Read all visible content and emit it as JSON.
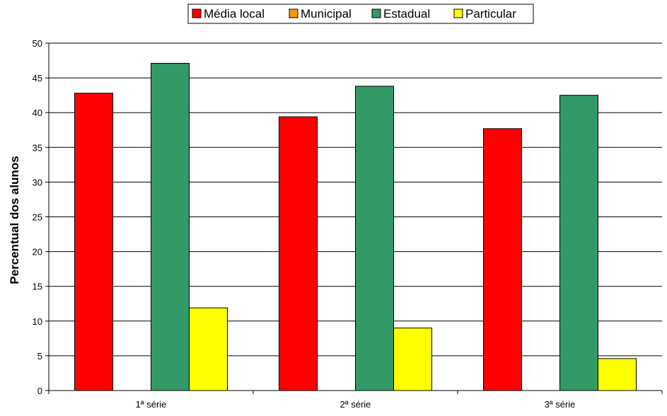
{
  "chart_data": {
    "type": "bar",
    "categories": [
      "1ª série",
      "2ª série",
      "3ª série"
    ],
    "series": [
      {
        "name": "Média local",
        "color": "#ff0000",
        "values": [
          42.8,
          39.4,
          37.7
        ]
      },
      {
        "name": "Municipal",
        "color": "#ff9900",
        "values": [
          0,
          0,
          0
        ]
      },
      {
        "name": "Estadual",
        "color": "#339966",
        "values": [
          47.1,
          43.8,
          42.5
        ]
      },
      {
        "name": "Particular",
        "color": "#ffff00",
        "values": [
          11.9,
          9.0,
          4.6
        ]
      }
    ],
    "ylabel": "Percentual dos alunos",
    "ylim": [
      0,
      50
    ],
    "yticks": [
      0,
      5,
      10,
      15,
      20,
      25,
      30,
      35,
      40,
      45,
      50
    ],
    "grid": true,
    "legend_position": "top-center"
  }
}
